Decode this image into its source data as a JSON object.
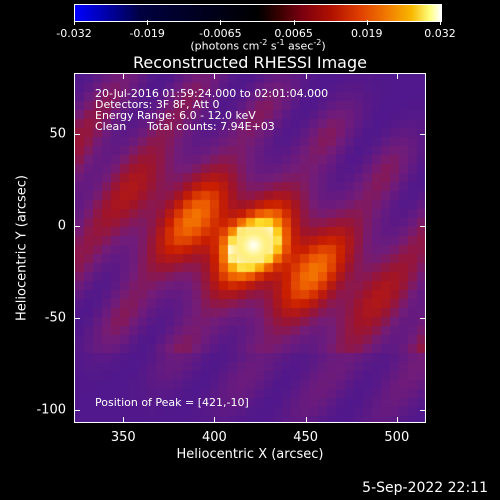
{
  "colorbar": {
    "ticks": [
      "-0.032",
      "-0.019",
      "-0.0065",
      "0.0065",
      "0.019",
      "0.032"
    ],
    "units_text": "(photons cm",
    "units_exp1": "-2",
    "units_mid": " s",
    "units_exp2": "-1",
    "units_end": " asec",
    "units_exp3": "-2",
    "units_close": ")"
  },
  "title": "Reconstructed RHESSI Image",
  "annotations": {
    "time_range": "20-Jul-2016 01:59:24.000 to 02:01:04.000",
    "detectors": "Detectors: 3F 8F, Att 0",
    "energy": "Energy Range: 6.0 - 12.0 keV",
    "clean_label": "Clean",
    "total_counts": "Total counts: 7.94E+03",
    "peak": "Position of Peak = [421,-10]"
  },
  "axes": {
    "x_title": "Heliocentric X (arcsec)",
    "y_title": "Heliocentric Y (arcsec)",
    "x_ticks": [
      "350",
      "400",
      "450",
      "500"
    ],
    "y_ticks": [
      "50",
      "0",
      "-50",
      "-100"
    ],
    "x_range": [
      323,
      516
    ],
    "y_range": [
      -107,
      83
    ]
  },
  "peak_position": [
    421,
    -10
  ],
  "footer_date": "5-Sep-2022 22:11"
}
